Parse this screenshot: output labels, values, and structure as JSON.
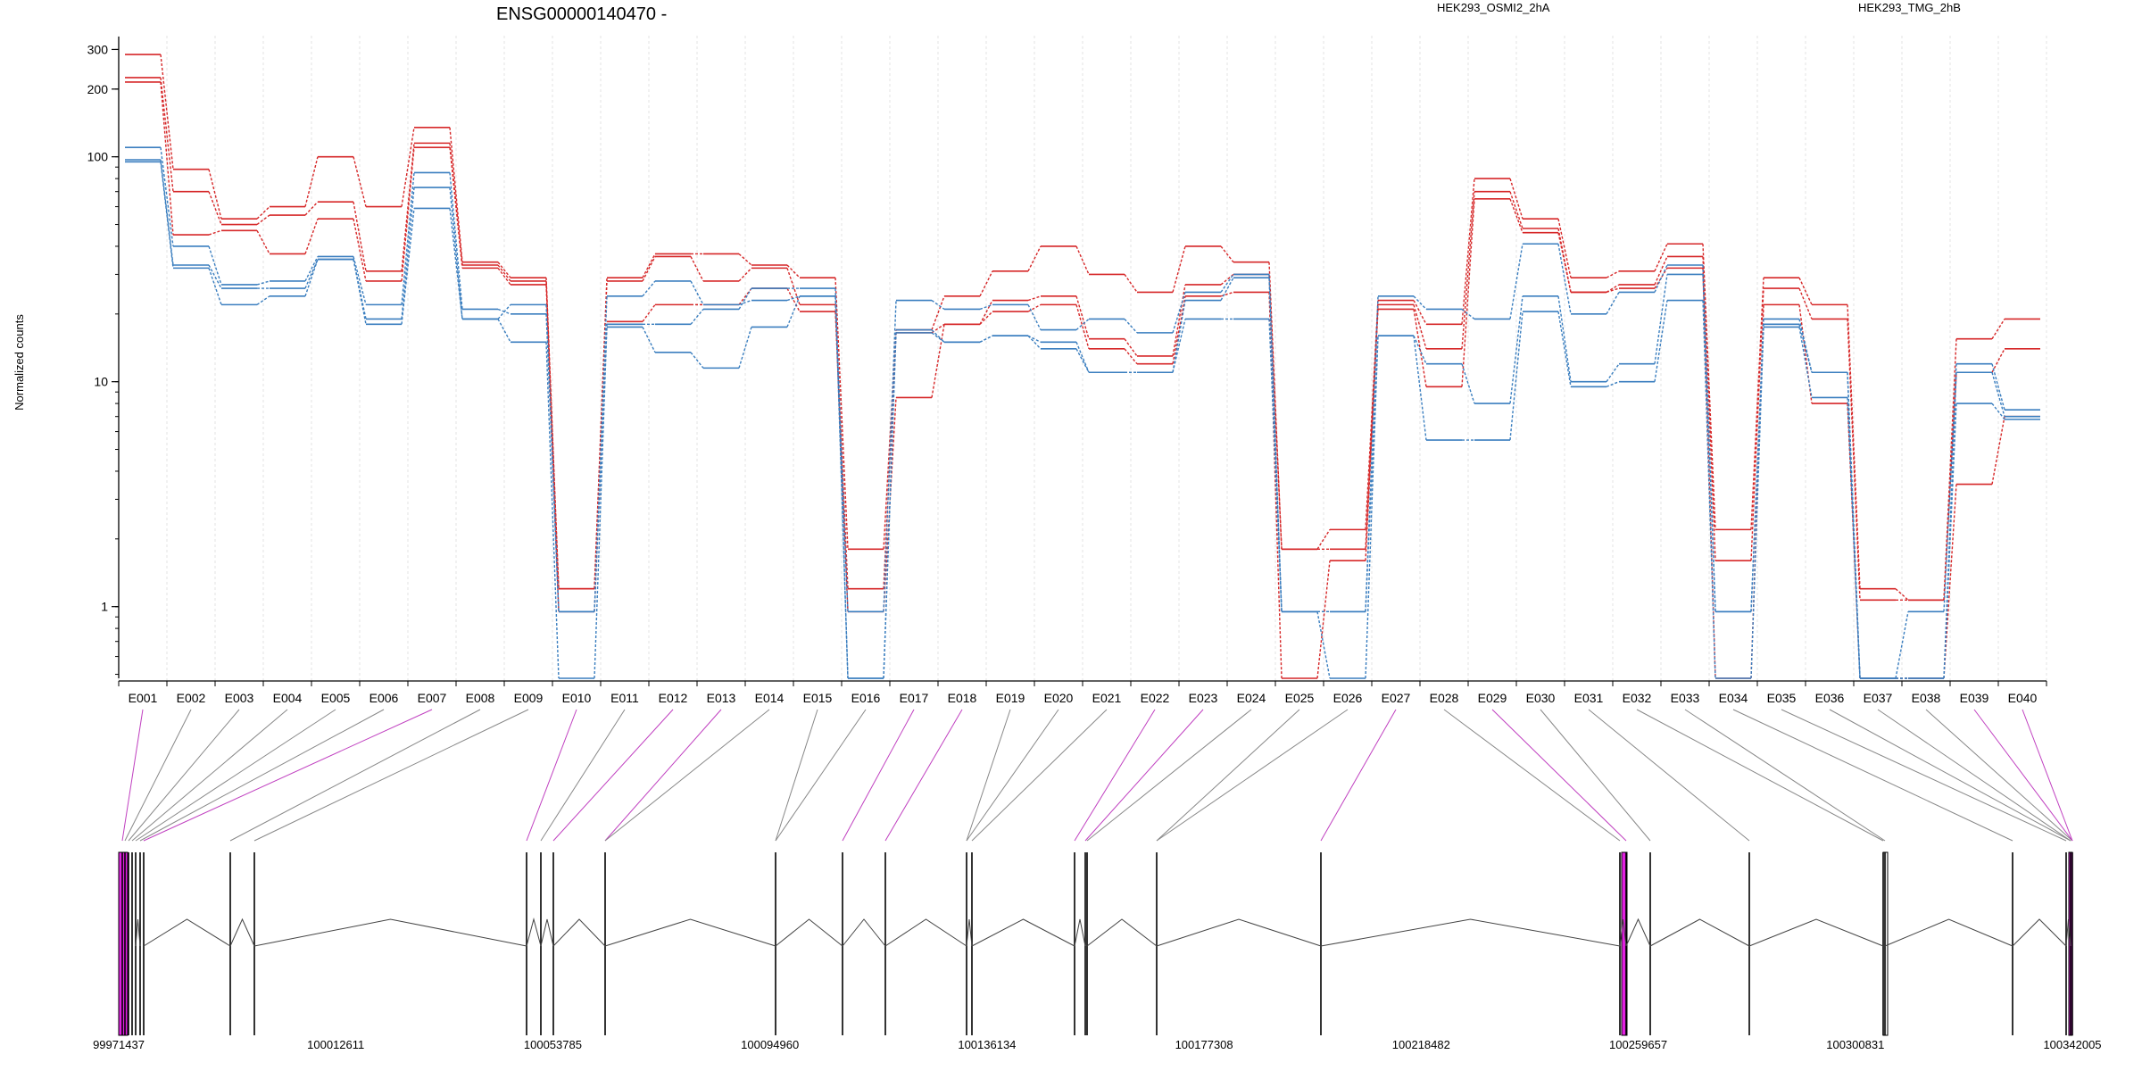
{
  "chart_data": {
    "type": "line",
    "title": "ENSG00000140470 -",
    "ylabel": "Normalized counts",
    "yscale": "log",
    "ylim": [
      0.48,
      330
    ],
    "yticks": [
      1,
      10,
      100,
      200,
      300
    ],
    "ytick_labels": [
      "1",
      "10",
      "100",
      "200",
      "300"
    ],
    "categories": [
      "E001",
      "E002",
      "E003",
      "E004",
      "E005",
      "E006",
      "E007",
      "E008",
      "E009",
      "E010",
      "E011",
      "E012",
      "E013",
      "E014",
      "E015",
      "E016",
      "E017",
      "E018",
      "E019",
      "E020",
      "E021",
      "E022",
      "E023",
      "E024",
      "E025",
      "E026",
      "E027",
      "E028",
      "E029",
      "E030",
      "E031",
      "E032",
      "E033",
      "E034",
      "E035",
      "E036",
      "E037",
      "E038",
      "E039",
      "E040"
    ],
    "legend": [
      {
        "name": "HEK293_OSMI2_2hA",
        "color": "#d62728"
      },
      {
        "name": "HEK293_TMG_2hB",
        "color": "#3a7ebf"
      }
    ],
    "series": [
      {
        "group": "HEK293_OSMI2_2hA",
        "color": "#d62728",
        "values": [
          285,
          88,
          53,
          60,
          100,
          60,
          135,
          34,
          29,
          1.2,
          29,
          37,
          37,
          33,
          29,
          1.8,
          17,
          24,
          31,
          40,
          30,
          25,
          40,
          34,
          1.8,
          2.2,
          23,
          18,
          80,
          53,
          29,
          31,
          41,
          2.2,
          29,
          22,
          1.2,
          1.07,
          15.5,
          19
        ]
      },
      {
        "group": "HEK293_OSMI2_2hA",
        "color": "#d62728",
        "values": [
          225,
          70,
          50,
          55,
          63,
          31,
          115,
          33,
          28,
          1.2,
          28,
          36,
          28,
          32,
          22,
          1.2,
          16.5,
          18,
          23,
          24,
          15.5,
          13,
          27,
          30,
          1.8,
          1.8,
          22,
          14,
          70,
          48,
          25,
          27,
          36,
          1.6,
          26,
          19,
          1.07,
          1.07,
          11,
          14
        ]
      },
      {
        "group": "HEK293_OSMI2_2hA",
        "color": "#d62728",
        "values": [
          215,
          45,
          47,
          37,
          53,
          28,
          110,
          32,
          27,
          0.95,
          18.5,
          22,
          22,
          26,
          20.5,
          0.95,
          8.5,
          18,
          20.5,
          22,
          14,
          12,
          24,
          25,
          0.48,
          1.6,
          21,
          9.5,
          65,
          46,
          25,
          26,
          32,
          0.48,
          22,
          8,
          0.48,
          0.48,
          3.5,
          7
        ]
      },
      {
        "group": "HEK293_TMG_2hB",
        "color": "#3a7ebf",
        "values": [
          110,
          40,
          27,
          28,
          36,
          22,
          85,
          21,
          20,
          0.95,
          24,
          28,
          22,
          23,
          24,
          0.95,
          23,
          21,
          22,
          17,
          19,
          16.5,
          25,
          30,
          0.95,
          0.95,
          24,
          21,
          19,
          41,
          20,
          25,
          33,
          0.95,
          19,
          11,
          0.48,
          0.95,
          12,
          7.5
        ]
      },
      {
        "group": "HEK293_TMG_2hB",
        "color": "#3a7ebf",
        "values": [
          97,
          33,
          26,
          26,
          35,
          19,
          73,
          19,
          22,
          0.95,
          18,
          18,
          21,
          26,
          26,
          0.48,
          16.5,
          15,
          16,
          15,
          11,
          11,
          23,
          29,
          0.95,
          0.95,
          16,
          12,
          8,
          24,
          10,
          12,
          30,
          0.95,
          18,
          11,
          0.48,
          0.48,
          11,
          7
        ]
      },
      {
        "group": "HEK293_TMG_2hB",
        "color": "#3a7ebf",
        "values": [
          95,
          32,
          22,
          24,
          35,
          18,
          59,
          19,
          15,
          0.48,
          17.5,
          13.5,
          11.5,
          17.5,
          24,
          0.48,
          17,
          15,
          16,
          14,
          11,
          11,
          19,
          19,
          0.95,
          0.48,
          16,
          5.5,
          5.5,
          20.5,
          9.5,
          10,
          23,
          0.48,
          17.5,
          8.5,
          0.48,
          0.48,
          8,
          6.8
        ]
      }
    ],
    "gene_model": {
      "coordinate_labels": [
        "99971437",
        "100012611",
        "100053785",
        "100094960",
        "100136134",
        "100177308",
        "100218482",
        "100259657",
        "100300831",
        "100342005"
      ],
      "highlight_color": "#e020e0"
    }
  }
}
